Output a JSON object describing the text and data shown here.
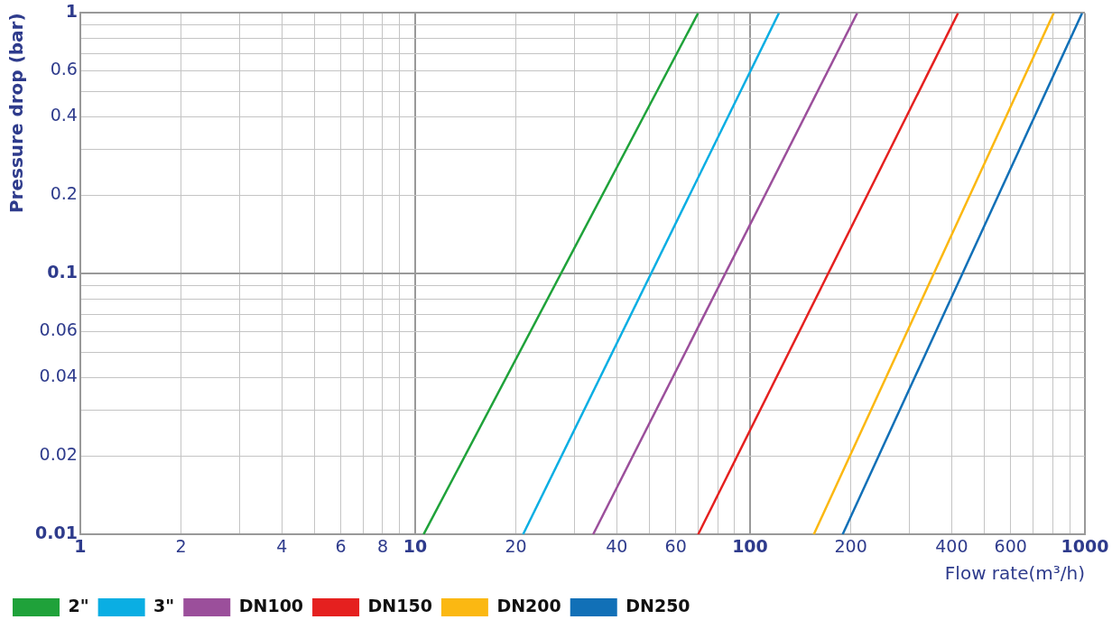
{
  "chart_data": {
    "type": "line",
    "xlabel": "Flow rate(m³/h)",
    "ylabel": "Pressure drop (bar)",
    "log": "xy",
    "grid": true,
    "legend": "bottom left",
    "marker": "none",
    "line_style": "solid",
    "xlim": [
      1,
      1000
    ],
    "ylim": [
      0.01,
      1
    ],
    "xticks": [
      1,
      2,
      {
        "value": 3,
        "label": null
      },
      4,
      {
        "value": 5,
        "label": null
      },
      6,
      {
        "value": 7,
        "label": null
      },
      8,
      {
        "value": 9,
        "label": null
      },
      10,
      20,
      {
        "value": 30,
        "label": null
      },
      40,
      {
        "value": 50,
        "label": null
      },
      60,
      {
        "value": 70,
        "label": null
      },
      {
        "value": 80,
        "label": null
      },
      {
        "value": 90,
        "label": null
      },
      100,
      200,
      {
        "value": 300,
        "label": null
      },
      400,
      {
        "value": 500,
        "label": null
      },
      600,
      {
        "value": 700,
        "label": null
      },
      {
        "value": 800,
        "label": null
      },
      {
        "value": 900,
        "label": null
      },
      1000
    ],
    "yticks": [
      0.01,
      0.02,
      {
        "value": 0.03,
        "label": null
      },
      0.04,
      {
        "value": 0.05,
        "label": null
      },
      0.06,
      {
        "value": 0.07,
        "label": null
      },
      {
        "value": 0.08,
        "label": null
      },
      {
        "value": 0.09,
        "label": null
      },
      0.1,
      0.2,
      {
        "value": 0.3,
        "label": null
      },
      0.4,
      {
        "value": 0.5,
        "label": null
      },
      0.6,
      {
        "value": 0.7,
        "label": null
      },
      {
        "value": 0.8,
        "label": null
      },
      {
        "value": 0.9,
        "label": null
      },
      1
    ],
    "series": [
      {
        "name": "2\"",
        "color": "#1fa23a",
        "x": [
          10.6,
          70
        ],
        "values": [
          0.01,
          1
        ]
      },
      {
        "name": "3\"",
        "color": "#0aaee3",
        "x": [
          21,
          122
        ],
        "values": [
          0.01,
          1
        ]
      },
      {
        "name": "DN100",
        "color": "#9b4f9b",
        "x": [
          34,
          209
        ],
        "values": [
          0.01,
          1
        ]
      },
      {
        "name": "DN150",
        "color": "#e5201f",
        "x": [
          70,
          418
        ],
        "values": [
          0.01,
          1
        ]
      },
      {
        "name": "DN200",
        "color": "#fbb812",
        "x": [
          155,
          807
        ],
        "values": [
          0.01,
          1
        ]
      },
      {
        "name": "DN250",
        "color": "#1170b7",
        "x": [
          189,
          981
        ],
        "values": [
          0.01,
          1
        ]
      }
    ]
  }
}
